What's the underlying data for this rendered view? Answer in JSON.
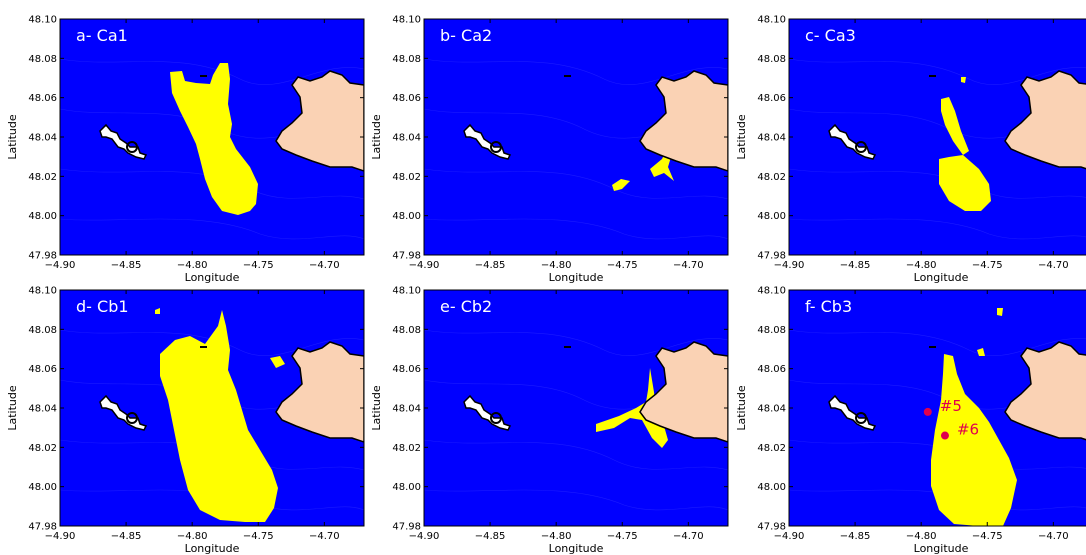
{
  "figure": {
    "panels": [
      {
        "id": "a",
        "title": "a- Ca1",
        "xlabel": "Longitude",
        "ylabel": "Latitude"
      },
      {
        "id": "b",
        "title": "b- Ca2",
        "xlabel": "Longitude",
        "ylabel": "Latitude"
      },
      {
        "id": "c",
        "title": "c- Ca3",
        "xlabel": "Longitude",
        "ylabel": "Latitude"
      },
      {
        "id": "d",
        "title": "d- Cb1",
        "xlabel": "Longitude",
        "ylabel": "Latitude"
      },
      {
        "id": "e",
        "title": "e- Cb2",
        "xlabel": "Longitude",
        "ylabel": "Latitude"
      },
      {
        "id": "f",
        "title": "f- Cb3",
        "xlabel": "Longitude",
        "ylabel": "Latitude"
      }
    ],
    "x_ticks": [
      "−4.90",
      "−4.85",
      "−4.80",
      "−4.75",
      "−4.70"
    ],
    "y_ticks": [
      "48.10",
      "48.08",
      "48.06",
      "48.04",
      "48.02",
      "48.00",
      "47.98"
    ],
    "markers": [
      {
        "label": "#5",
        "lon": -4.795,
        "lat": 48.038
      },
      {
        "label": "#6",
        "lon": -4.782,
        "lat": 48.026
      }
    ]
  },
  "colors": {
    "water": "#0000ff",
    "land": "#fad2b4",
    "plume": "#ffff00",
    "marker": "#e0004d",
    "title_text": "#ffffff"
  },
  "chart_data": {
    "type": "heatmap",
    "xlim": [
      -4.9,
      -4.67
    ],
    "ylim": [
      47.98,
      48.1
    ],
    "grid": false
  }
}
